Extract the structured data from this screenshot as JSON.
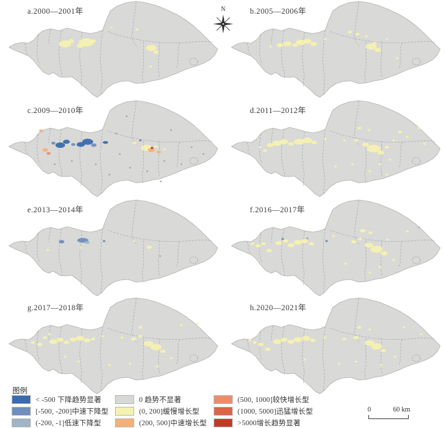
{
  "figure": {
    "north_label": "N"
  },
  "panels": [
    {
      "id": "a",
      "label": "a.2000—2001年",
      "spots": [
        [
          95,
          64,
          9,
          5,
          "up_slow"
        ],
        [
          104,
          60,
          4,
          3,
          "up_slow"
        ],
        [
          126,
          62,
          11,
          6,
          "up_slow"
        ],
        [
          117,
          67,
          5,
          3,
          "up_slow"
        ],
        [
          136,
          60,
          4,
          2.5,
          "up_slow"
        ],
        [
          221,
          70,
          8,
          4.5,
          "up_slow"
        ],
        [
          228,
          76,
          4,
          2.5,
          "up_slow"
        ],
        [
          200,
          43,
          2,
          1.5,
          "up_slow"
        ],
        [
          220,
          97,
          2,
          1.5,
          "up_slow"
        ],
        [
          163,
          40,
          1.5,
          1.2,
          "up_slow"
        ]
      ]
    },
    {
      "id": "b",
      "label": "b.2005—2006年",
      "spots": [
        [
          70,
          68,
          2,
          1.5,
          "up_slow"
        ],
        [
          84,
          66,
          5,
          3,
          "up_slow"
        ],
        [
          95,
          64,
          6,
          3.5,
          "up_slow"
        ],
        [
          106,
          66,
          4,
          2.5,
          "up_slow"
        ],
        [
          114,
          62,
          7,
          4,
          "up_slow"
        ],
        [
          124,
          60,
          6,
          3.5,
          "up_slow"
        ],
        [
          133,
          64,
          5,
          3,
          "up_slow"
        ],
        [
          150,
          57,
          2,
          1.5,
          "up_slow"
        ],
        [
          186,
          47,
          3,
          2,
          "up_slow"
        ],
        [
          197,
          50,
          3,
          2,
          "up_slow"
        ],
        [
          210,
          53,
          2,
          1.5,
          "up_slow"
        ],
        [
          217,
          68,
          8,
          4.5,
          "up_slow"
        ],
        [
          227,
          73,
          5,
          3,
          "up_slow"
        ],
        [
          222,
          63,
          3,
          2,
          "up_slow"
        ],
        [
          240,
          57,
          2,
          1.5,
          "up_slow"
        ],
        [
          255,
          85,
          2,
          1.5,
          "up_slow"
        ]
      ]
    },
    {
      "id": "c",
      "label": "c.2009—2010年",
      "spots": [
        [
          60,
          46,
          3,
          2,
          "up_mid"
        ],
        [
          66,
          74,
          4,
          2.5,
          "up_mid"
        ],
        [
          71,
          79,
          3,
          2,
          "up_fast"
        ],
        [
          78,
          64,
          3,
          2,
          "down_mid"
        ],
        [
          88,
          67,
          7,
          4,
          "down_sig"
        ],
        [
          97,
          62,
          5,
          3,
          "down_sig"
        ],
        [
          107,
          66,
          3,
          2,
          "down_mid"
        ],
        [
          118,
          66,
          6,
          3.5,
          "down_sig"
        ],
        [
          128,
          62,
          8,
          4.5,
          "down_sig"
        ],
        [
          137,
          67,
          4,
          2.5,
          "down_mid"
        ],
        [
          154,
          63,
          4,
          2,
          "down_sig"
        ],
        [
          196,
          64,
          3,
          2,
          "up_slow"
        ],
        [
          205,
          60,
          2,
          1.5,
          "down_mid"
        ],
        [
          214,
          71,
          8,
          4.5,
          "up_slow"
        ],
        [
          221,
          74,
          5,
          3,
          "up_mid"
        ],
        [
          222,
          71,
          2,
          1.5,
          "up_sig"
        ],
        [
          228,
          69,
          3,
          2,
          "up_slow"
        ],
        [
          232,
          77,
          3,
          2,
          "up_mid"
        ],
        [
          240,
          73,
          2,
          1.5,
          "up_slow"
        ],
        [
          170,
          50,
          1.2,
          1.2,
          "speck"
        ],
        [
          185,
          25,
          1.2,
          1.2,
          "speck"
        ],
        [
          240,
          90,
          1.2,
          1.2,
          "speck"
        ],
        [
          190,
          100,
          1.2,
          1.2,
          "speck"
        ],
        [
          140,
          95,
          1.2,
          1.2,
          "speck"
        ],
        [
          105,
          90,
          1.2,
          1.2,
          "speck"
        ],
        [
          250,
          45,
          1.2,
          1.2,
          "speck"
        ],
        [
          280,
          70,
          1.2,
          1.2,
          "speck"
        ],
        [
          160,
          110,
          1.2,
          1.2,
          "speck"
        ],
        [
          215,
          105,
          1.2,
          1.2,
          "speck"
        ],
        [
          235,
          120,
          1.2,
          1.2,
          "speck"
        ],
        [
          80,
          95,
          1.2,
          1.2,
          "speck"
        ],
        [
          297,
          80,
          1.2,
          1.2,
          "speck"
        ],
        [
          265,
          95,
          1.2,
          1.2,
          "speck"
        ],
        [
          175,
          80,
          1.2,
          1.2,
          "speck"
        ]
      ]
    },
    {
      "id": "d",
      "label": "d.2011—2012年",
      "spots": [
        [
          55,
          70,
          2,
          1.5,
          "up_slow"
        ],
        [
          62,
          75,
          3,
          2,
          "up_slow"
        ],
        [
          70,
          67,
          5,
          3,
          "up_slow"
        ],
        [
          80,
          64,
          7,
          4,
          "up_slow"
        ],
        [
          90,
          62,
          6,
          3.5,
          "up_slow"
        ],
        [
          100,
          65,
          4,
          2.5,
          "up_slow"
        ],
        [
          112,
          62,
          8,
          4,
          "up_slow"
        ],
        [
          124,
          60,
          7,
          4,
          "up_slow"
        ],
        [
          134,
          63,
          4,
          2.5,
          "up_slow"
        ],
        [
          150,
          58,
          2,
          1.5,
          "up_slow"
        ],
        [
          178,
          60,
          2,
          1.5,
          "up_slow"
        ],
        [
          195,
          60,
          3,
          2,
          "up_slow"
        ],
        [
          209,
          66,
          5,
          3,
          "up_slow"
        ],
        [
          221,
          72,
          10,
          5.5,
          "up_slow"
        ],
        [
          231,
          78,
          5,
          3,
          "up_slow"
        ],
        [
          240,
          70,
          3,
          2,
          "up_slow"
        ],
        [
          250,
          60,
          2,
          1.5,
          "up_slow"
        ],
        [
          200,
          42,
          3,
          2,
          "up_slow"
        ],
        [
          214,
          45,
          2,
          1.5,
          "up_slow"
        ],
        [
          259,
          48,
          3,
          2,
          "up_slow"
        ],
        [
          270,
          55,
          2,
          1.5,
          "up_slow"
        ],
        [
          230,
          95,
          2,
          1.5,
          "up_slow"
        ],
        [
          215,
          105,
          2,
          1.5,
          "up_slow"
        ],
        [
          245,
          88,
          2,
          1.5,
          "up_slow"
        ],
        [
          190,
          95,
          2,
          1.5,
          "up_slow"
        ],
        [
          165,
          98,
          2,
          1.5,
          "up_slow"
        ],
        [
          240,
          110,
          2,
          1.5,
          "up_slow"
        ],
        [
          287,
          42,
          2,
          1.5,
          "up_slow"
        ],
        [
          295,
          65,
          2,
          1.5,
          "up_slow"
        ]
      ]
    },
    {
      "id": "e",
      "label": "e.2013—2014年",
      "spots": [
        [
          90,
          63,
          4,
          2.5,
          "down_mid"
        ],
        [
          121,
          61,
          8,
          3.5,
          "down_mid"
        ],
        [
          127,
          64,
          4,
          2,
          "down_slow"
        ],
        [
          152,
          62,
          2,
          1.5,
          "down_mid"
        ],
        [
          70,
          75,
          2,
          1.5,
          "up_slow"
        ],
        [
          118,
          72,
          1.5,
          1.2,
          "up_slow"
        ],
        [
          196,
          62,
          1.5,
          1.2,
          "up_slow"
        ],
        [
          218,
          71,
          4,
          2.5,
          "up_slow"
        ],
        [
          234,
          84,
          1.5,
          1.2,
          "down_slow"
        ]
      ]
    },
    {
      "id": "f",
      "label": "f.2016—2017年",
      "spots": [
        [
          44,
          66,
          3,
          2,
          "up_slow"
        ],
        [
          52,
          69,
          4,
          2.5,
          "up_slow"
        ],
        [
          60,
          66,
          3,
          2,
          "up_slow"
        ],
        [
          68,
          76,
          4,
          2.5,
          "up_slow"
        ],
        [
          82,
          65,
          5,
          3,
          "up_slow"
        ],
        [
          92,
          62,
          4,
          2.5,
          "up_slow"
        ],
        [
          100,
          68,
          5,
          3,
          "up_slow"
        ],
        [
          110,
          64,
          6,
          3.5,
          "up_slow"
        ],
        [
          120,
          62,
          5,
          3,
          "up_slow"
        ],
        [
          130,
          66,
          4,
          2.5,
          "up_slow"
        ],
        [
          88,
          59,
          2,
          1.5,
          "down_mid"
        ],
        [
          124,
          58,
          2,
          1.5,
          "down_slow"
        ],
        [
          152,
          62,
          2,
          1.5,
          "down_mid"
        ],
        [
          180,
          95,
          2,
          1.5,
          "up_slow"
        ],
        [
          192,
          63,
          4,
          2.5,
          "up_slow"
        ],
        [
          201,
          59,
          3,
          2,
          "up_slow"
        ],
        [
          214,
          68,
          6,
          3.5,
          "up_slow"
        ],
        [
          225,
          74,
          9,
          5,
          "up_slow"
        ],
        [
          236,
          80,
          5,
          3,
          "up_slow"
        ],
        [
          205,
          47,
          4,
          2.5,
          "up_slow"
        ],
        [
          216,
          50,
          3,
          2,
          "up_slow"
        ],
        [
          250,
          90,
          2,
          1.5,
          "up_slow"
        ],
        [
          230,
          100,
          2,
          1.5,
          "up_slow"
        ],
        [
          215,
          108,
          2,
          1.5,
          "up_slow"
        ],
        [
          270,
          48,
          2,
          1.5,
          "up_slow"
        ],
        [
          287,
          42,
          1.5,
          1.2,
          "down_slow"
        ],
        [
          241,
          60,
          2,
          1.5,
          "up_slow"
        ],
        [
          162,
          55,
          2,
          1.5,
          "up_slow"
        ]
      ]
    },
    {
      "id": "g",
      "label": "g.2017—2018年",
      "spots": [
        [
          48,
          67,
          3,
          2,
          "up_slow"
        ],
        [
          58,
          70,
          4,
          2.5,
          "up_slow"
        ],
        [
          66,
          60,
          3,
          2,
          "up_slow"
        ],
        [
          72,
          55,
          2,
          1.5,
          "up_slow"
        ],
        [
          78,
          66,
          6,
          3.5,
          "up_slow"
        ],
        [
          88,
          63,
          5,
          3,
          "up_slow"
        ],
        [
          97,
          67,
          4,
          2.5,
          "up_slow"
        ],
        [
          107,
          63,
          5,
          3,
          "up_slow"
        ],
        [
          117,
          61,
          6,
          3.5,
          "up_slow"
        ],
        [
          127,
          64,
          5,
          3,
          "up_slow"
        ],
        [
          136,
          62,
          3,
          2,
          "up_slow"
        ],
        [
          150,
          58,
          2,
          1.5,
          "up_slow"
        ],
        [
          178,
          60,
          2,
          1.5,
          "up_slow"
        ],
        [
          195,
          62,
          4,
          2.5,
          "up_slow"
        ],
        [
          205,
          58,
          3,
          2,
          "up_slow"
        ],
        [
          217,
          69,
          7,
          4,
          "up_slow"
        ],
        [
          228,
          74,
          8,
          4.5,
          "up_slow"
        ],
        [
          238,
          80,
          4,
          2.5,
          "up_slow"
        ],
        [
          205,
          45,
          3,
          2,
          "up_slow"
        ],
        [
          265,
          42,
          2,
          1.5,
          "up_slow"
        ],
        [
          288,
          40,
          2,
          1.5,
          "up_slow"
        ],
        [
          250,
          90,
          2,
          1.5,
          "up_slow"
        ],
        [
          230,
          102,
          2,
          1.5,
          "up_slow"
        ],
        [
          190,
          98,
          2,
          1.5,
          "up_slow"
        ],
        [
          160,
          100,
          2,
          1.5,
          "up_slow"
        ],
        [
          115,
          95,
          2,
          1.5,
          "up_slow"
        ],
        [
          95,
          88,
          2,
          1.5,
          "up_slow"
        ]
      ]
    },
    {
      "id": "h",
      "label": "h.2020—2021年",
      "spots": [
        [
          47,
          67,
          3,
          2,
          "up_slow"
        ],
        [
          56,
          70,
          4,
          2.5,
          "up_slow"
        ],
        [
          66,
          77,
          4,
          2.5,
          "up_slow"
        ],
        [
          80,
          66,
          6,
          3.5,
          "up_slow"
        ],
        [
          90,
          63,
          5,
          3,
          "up_slow"
        ],
        [
          100,
          66,
          5,
          3,
          "up_slow"
        ],
        [
          110,
          63,
          6,
          3.5,
          "up_slow"
        ],
        [
          122,
          61,
          6,
          3.5,
          "up_slow"
        ],
        [
          132,
          64,
          4,
          2.5,
          "up_slow"
        ],
        [
          150,
          60,
          2,
          1.5,
          "up_slow"
        ],
        [
          178,
          62,
          3,
          2,
          "up_slow"
        ],
        [
          195,
          60,
          4,
          2.5,
          "up_slow"
        ],
        [
          215,
          68,
          7,
          4,
          "up_slow"
        ],
        [
          225,
          73,
          8,
          4.5,
          "up_slow"
        ],
        [
          235,
          79,
          4,
          2.5,
          "up_slow"
        ],
        [
          200,
          45,
          3,
          2,
          "up_slow"
        ],
        [
          215,
          48,
          2,
          1.5,
          "up_slow"
        ],
        [
          265,
          45,
          2,
          1.5,
          "up_slow"
        ],
        [
          252,
          88,
          2,
          1.5,
          "up_slow"
        ],
        [
          232,
          100,
          2,
          1.5,
          "up_slow"
        ],
        [
          195,
          95,
          2,
          1.5,
          "up_slow"
        ],
        [
          170,
          98,
          2,
          1.5,
          "up_slow"
        ],
        [
          120,
          92,
          2,
          1.5,
          "up_slow"
        ],
        [
          290,
          55,
          2,
          1.5,
          "up_slow"
        ],
        [
          40,
          64,
          2,
          1.5,
          "up_slow"
        ]
      ]
    }
  ],
  "legend": {
    "title": "图例",
    "columns": [
      {
        "items": [
          {
            "key": "down_sig",
            "color": "#3B6BAE",
            "label": "< -500 下降趋势显著"
          },
          {
            "key": "down_mid",
            "color": "#6D8EBF",
            "label": "[-500, -200]中速下降型"
          },
          {
            "key": "down_slow",
            "color": "#9FB4C6",
            "label": "(-200, -1]低速下降型"
          }
        ]
      },
      {
        "items": [
          {
            "key": "none",
            "color": "#D8D8D5",
            "label": "0 趋势不显著"
          },
          {
            "key": "up_slow",
            "color": "#F5F1AF",
            "label": "(0, 200]缓慢增长型"
          },
          {
            "key": "up_mid",
            "color": "#F3B077",
            "label": "(200, 500]中速增长型"
          }
        ]
      },
      {
        "items": [
          {
            "key": "up_fast",
            "color": "#EC8D68",
            "label": "(500, 1000]较快增长型"
          },
          {
            "key": "up_rapid",
            "color": "#DC6446",
            "label": "(1000, 5000]迅猛增长型"
          },
          {
            "key": "up_sig",
            "color": "#C23A28",
            "label": ">5000增长趋势显著"
          }
        ]
      }
    ]
  },
  "map_style": {
    "fill": "#d9d9d7",
    "border": "#b2b2b0",
    "line": "#8e9aa4",
    "speck": "#97a1ab"
  },
  "scalebar": {
    "start": "0",
    "end": "60 km"
  }
}
